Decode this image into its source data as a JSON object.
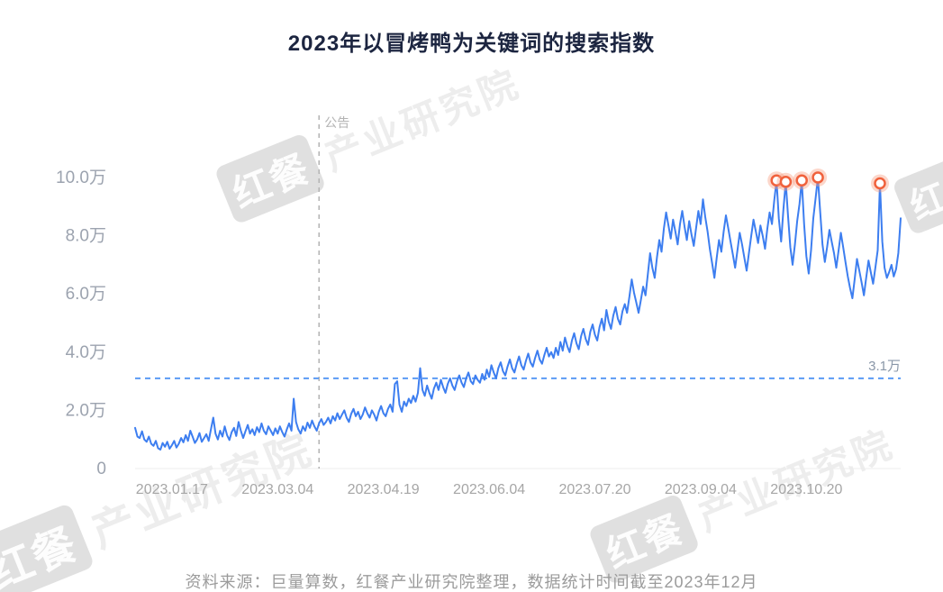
{
  "title": "2023年以冒烤鸭为关键词的搜索指数",
  "footer": "资料来源：巨量算数，红餐产业研究院整理，数据统计时间截至2023年12月",
  "watermark": {
    "logo": "红餐",
    "text": "产业研究院"
  },
  "colors": {
    "line": "#3D7EF0",
    "reference_line": "#5B9BF5",
    "reference_label": "#8A97A8",
    "axis_text": "#9CA3AF",
    "x_axis_text": "#A6A6A6",
    "title_text": "#1C2540",
    "footer_text": "#9B9B9B",
    "annotation": "#B3B3B3",
    "marker_ring": "#F0613C",
    "marker_glow": "#F89C7C",
    "watermark": "#8B8B8B"
  },
  "chart_data": {
    "type": "line",
    "title": "2023年以冒烤鸭为关键词的搜索指数",
    "unit": "万",
    "ylim": [
      0,
      10
    ],
    "grid": false,
    "y_ticks": [
      {
        "value": 0,
        "label": "0"
      },
      {
        "value": 2,
        "label": "2.0万"
      },
      {
        "value": 4,
        "label": "4.0万"
      },
      {
        "value": 6,
        "label": "6.0万"
      },
      {
        "value": 8,
        "label": "8.0万"
      },
      {
        "value": 10,
        "label": "10.0万"
      }
    ],
    "x_ticks": [
      {
        "index": 16,
        "label": "2023.01.17"
      },
      {
        "index": 62,
        "label": "2023.03.04"
      },
      {
        "index": 108,
        "label": "2023.04.19"
      },
      {
        "index": 154,
        "label": "2023.06.04"
      },
      {
        "index": 200,
        "label": "2023.07.20"
      },
      {
        "index": 246,
        "label": "2023.09.04"
      },
      {
        "index": 292,
        "label": "2023.10.20"
      }
    ],
    "annotation_line": {
      "index": 80,
      "label": "公告"
    },
    "reference_line": {
      "value": 3.1,
      "label": "3.1万"
    },
    "highlight_indices": [
      279,
      283,
      290,
      297,
      324
    ],
    "values": [
      1.4,
      1.1,
      1.05,
      1.28,
      1.0,
      0.92,
      1.1,
      0.85,
      0.78,
      0.95,
      0.7,
      0.65,
      0.88,
      0.75,
      0.92,
      0.68,
      0.8,
      0.95,
      0.72,
      0.85,
      1.05,
      0.9,
      1.15,
      0.95,
      1.3,
      1.1,
      0.88,
      1.0,
      1.22,
      0.92,
      1.05,
      1.18,
      0.95,
      1.35,
      1.75,
      1.2,
      1.0,
      1.3,
      1.1,
      1.45,
      1.15,
      0.98,
      1.25,
      1.4,
      1.12,
      1.6,
      1.3,
      1.05,
      1.28,
      1.5,
      1.2,
      1.35,
      1.15,
      1.42,
      1.25,
      1.55,
      1.3,
      1.18,
      1.45,
      1.3,
      1.15,
      1.38,
      1.2,
      1.45,
      1.25,
      1.1,
      1.35,
      1.55,
      1.3,
      2.4,
      1.6,
      1.35,
      1.2,
      1.45,
      1.3,
      1.58,
      1.4,
      1.65,
      1.45,
      1.3,
      1.55,
      1.7,
      1.5,
      1.6,
      1.75,
      1.55,
      1.8,
      1.65,
      1.9,
      1.7,
      1.85,
      2.0,
      1.75,
      1.6,
      1.88,
      2.05,
      1.8,
      1.95,
      1.7,
      1.85,
      2.1,
      1.9,
      1.75,
      2.0,
      1.85,
      1.65,
      1.95,
      2.15,
      1.9,
      1.8,
      2.05,
      2.2,
      1.95,
      2.9,
      3.0,
      2.2,
      1.95,
      2.3,
      2.15,
      2.4,
      2.25,
      2.5,
      2.3,
      2.6,
      3.45,
      2.7,
      2.5,
      2.85,
      2.6,
      2.4,
      2.75,
      2.95,
      2.7,
      3.05,
      2.8,
      2.6,
      2.9,
      3.1,
      2.85,
      2.7,
      3.0,
      3.2,
      2.95,
      2.8,
      3.1,
      3.3,
      3.0,
      2.9,
      3.2,
      3.05,
      2.95,
      3.25,
      3.05,
      3.4,
      3.15,
      3.55,
      3.3,
      3.1,
      3.45,
      3.65,
      3.35,
      3.2,
      3.5,
      3.75,
      3.45,
      3.3,
      3.6,
      3.85,
      3.55,
      3.4,
      3.7,
      3.95,
      3.65,
      3.5,
      3.8,
      4.05,
      3.75,
      3.6,
      3.9,
      4.15,
      3.85,
      4.0,
      3.8,
      4.15,
      3.9,
      4.35,
      4.05,
      4.5,
      4.2,
      4.0,
      4.4,
      4.65,
      4.3,
      4.1,
      4.55,
      4.8,
      4.45,
      4.25,
      4.7,
      4.95,
      4.6,
      4.4,
      4.85,
      5.15,
      4.75,
      5.45,
      5.05,
      4.8,
      5.25,
      5.55,
      5.15,
      4.95,
      5.4,
      5.65,
      5.35,
      5.9,
      6.5,
      6.05,
      5.7,
      5.35,
      5.8,
      6.25,
      5.95,
      6.65,
      7.4,
      6.9,
      6.55,
      7.25,
      7.85,
      7.45,
      8.25,
      8.8,
      8.35,
      7.9,
      8.55,
      8.15,
      7.7,
      8.4,
      8.85,
      8.3,
      7.85,
      8.5,
      8.05,
      7.65,
      8.25,
      8.85,
      8.4,
      9.25,
      8.65,
      8.15,
      7.55,
      7.05,
      6.55,
      7.25,
      7.85,
      7.45,
      8.15,
      8.7,
      8.25,
      7.8,
      7.35,
      6.9,
      7.5,
      8.1,
      7.7,
      7.25,
      6.8,
      7.4,
      8.0,
      8.55,
      8.15,
      7.75,
      8.35,
      8.0,
      7.55,
      8.25,
      8.8,
      8.4,
      9.2,
      9.9,
      8.6,
      7.8,
      8.9,
      9.85,
      8.7,
      7.6,
      7.0,
      7.7,
      8.5,
      9.1,
      9.9,
      8.4,
      7.3,
      6.7,
      7.5,
      8.6,
      9.3,
      10.0,
      8.8,
      7.7,
      7.1,
      7.6,
      8.2,
      7.8,
      7.4,
      6.9,
      7.5,
      8.1,
      7.6,
      7.1,
      6.6,
      6.2,
      5.85,
      6.5,
      7.2,
      6.8,
      6.4,
      5.95,
      6.55,
      7.15,
      6.75,
      6.35,
      6.9,
      7.5,
      9.8,
      7.8,
      6.9,
      6.55,
      6.75,
      7.0,
      6.6,
      6.85,
      7.4,
      8.6
    ]
  }
}
